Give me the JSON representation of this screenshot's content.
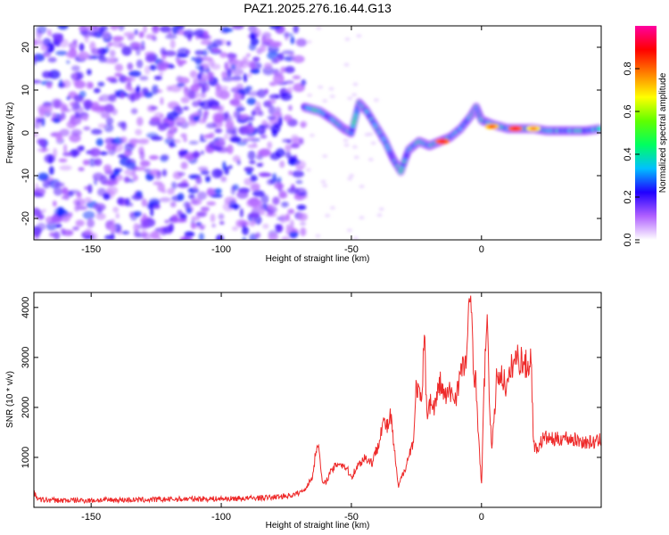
{
  "figure_title": "PAZ1.2025.276.16.44.G13",
  "chart_data": [
    {
      "type": "heatmap",
      "title": "PAZ1.2025.276.16.44.G13",
      "xlabel": "Height of straight line (km)",
      "ylabel": "Frequency (Hz)",
      "xlim": [
        -172,
        46
      ],
      "ylim": [
        -25,
        25
      ],
      "xticks": [
        -150,
        -100,
        -50,
        0
      ],
      "yticks": [
        -20,
        -10,
        0,
        10,
        20
      ],
      "noise_region_x": [
        -172,
        -68
      ],
      "signal_track": [
        {
          "x": -68,
          "f": 6
        },
        {
          "x": -62,
          "f": 5
        },
        {
          "x": -57,
          "f": 3
        },
        {
          "x": -53,
          "f": 1
        },
        {
          "x": -50,
          "f": 0
        },
        {
          "x": -47,
          "f": 7
        },
        {
          "x": -44,
          "f": 5
        },
        {
          "x": -40,
          "f": 1
        },
        {
          "x": -37,
          "f": -2
        },
        {
          "x": -34,
          "f": -6
        },
        {
          "x": -31,
          "f": -9
        },
        {
          "x": -28,
          "f": -4
        },
        {
          "x": -24,
          "f": -2
        },
        {
          "x": -20,
          "f": -3
        },
        {
          "x": -16,
          "f": -2
        },
        {
          "x": -12,
          "f": -1
        },
        {
          "x": -8,
          "f": 1
        },
        {
          "x": -4,
          "f": 4
        },
        {
          "x": -2,
          "f": 6
        },
        {
          "x": 0,
          "f": 3
        },
        {
          "x": 4,
          "f": 2
        },
        {
          "x": 10,
          "f": 1
        },
        {
          "x": 15,
          "f": 1
        },
        {
          "x": 20,
          "f": 1
        },
        {
          "x": 25,
          "f": 0.5
        },
        {
          "x": 30,
          "f": 0.5
        },
        {
          "x": 35,
          "f": 0.5
        },
        {
          "x": 40,
          "f": 0.5
        },
        {
          "x": 46,
          "f": 1
        }
      ],
      "strong_peaks": [
        {
          "x": -15,
          "f": -2,
          "amp": 1.0
        },
        {
          "x": 4,
          "f": 1.5,
          "amp": 0.9
        },
        {
          "x": 13,
          "f": 1,
          "amp": 1.0
        },
        {
          "x": 20,
          "f": 1,
          "amp": 0.85
        }
      ],
      "colorbar": {
        "label": "Normalized spectral amplitude",
        "range": [
          0,
          1
        ],
        "ticks": [
          "0.0",
          "0.2",
          "0.4",
          "0.6",
          "0.8"
        ],
        "colormap": [
          "#ffffff",
          "#b060ff",
          "#2000ff",
          "#00c0ff",
          "#00ff60",
          "#60ff00",
          "#ffff00",
          "#ff8000",
          "#ff0000",
          "#ff00a0"
        ]
      }
    },
    {
      "type": "line",
      "xlabel": "Height of straight line (km)",
      "ylabel": "SNR (10 * v/v)",
      "xlim": [
        -172,
        46
      ],
      "ylim": [
        0,
        4300
      ],
      "xticks": [
        -150,
        -100,
        -50,
        0
      ],
      "yticks": [
        1000,
        2000,
        3000,
        4000
      ],
      "color": "#ee2a2a",
      "series": [
        {
          "name": "SNR",
          "x": [
            -172,
            -170,
            -160,
            -150,
            -140,
            -130,
            -120,
            -110,
            -100,
            -90,
            -80,
            -72,
            -68,
            -65,
            -63,
            -62,
            -61,
            -60,
            -58,
            -55,
            -52,
            -50,
            -48,
            -45,
            -42,
            -40,
            -38,
            -36,
            -35,
            -34,
            -33,
            -32,
            -30,
            -28,
            -26,
            -25,
            -23,
            -22,
            -21,
            -20,
            -18,
            -16,
            -14,
            -12,
            -10,
            -8,
            -6,
            -5,
            -4,
            -3,
            -2,
            -1,
            0,
            1,
            2,
            3,
            4,
            6,
            8,
            10,
            12,
            14,
            16,
            18,
            19,
            20,
            21,
            24,
            28,
            32,
            36,
            40,
            44,
            46
          ],
          "y": [
            280,
            150,
            140,
            140,
            150,
            150,
            160,
            170,
            170,
            180,
            200,
            250,
            350,
            600,
            1350,
            900,
            450,
            500,
            700,
            900,
            800,
            600,
            800,
            1000,
            900,
            1200,
            1700,
            1600,
            1850,
            1400,
            900,
            400,
            700,
            1000,
            1400,
            2500,
            2000,
            3450,
            1900,
            2100,
            2000,
            2500,
            2200,
            2300,
            2200,
            2700,
            2900,
            3700,
            4200,
            2800,
            2400,
            1300,
            400,
            2400,
            3800,
            2300,
            1100,
            2700,
            2600,
            2400,
            2900,
            3000,
            2900,
            2800,
            3100,
            1300,
            1150,
            1400,
            1350,
            1400,
            1350,
            1300,
            1300,
            1350
          ]
        }
      ]
    }
  ]
}
